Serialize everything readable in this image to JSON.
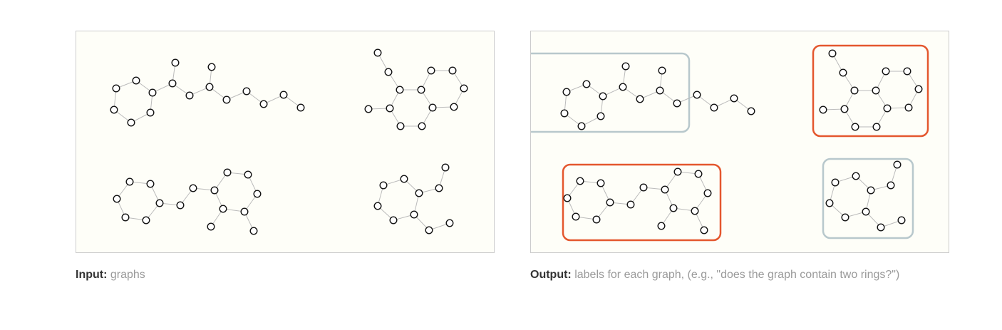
{
  "input_caption": {
    "label": "Input:",
    "text": "graphs"
  },
  "output_caption": {
    "label": "Output:",
    "text": "labels for each graph, (e.g., \"does the graph contain two rings?\")"
  },
  "colors": {
    "positive_label": "#e4572e",
    "negative_label": "#b8c8cc",
    "edge": "#bbbbbb",
    "node_stroke": "#111111",
    "panel_background": "#fefef8"
  },
  "graphs": [
    {
      "id": "graph-1",
      "label": "negative"
    },
    {
      "id": "graph-2",
      "label": "positive"
    },
    {
      "id": "graph-3",
      "label": "positive"
    },
    {
      "id": "graph-4",
      "label": "negative"
    }
  ]
}
